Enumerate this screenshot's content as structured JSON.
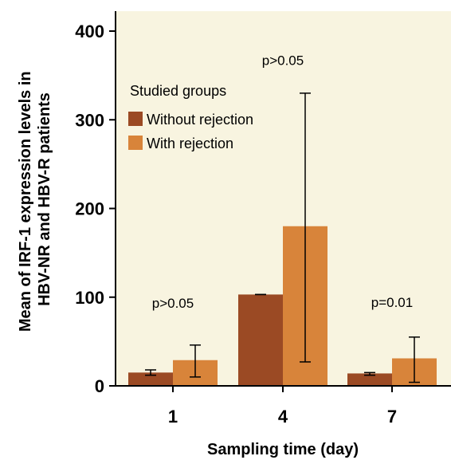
{
  "chart_data": {
    "type": "bar",
    "categories": [
      "1",
      "4",
      "7"
    ],
    "xlabel": "Sampling time (day)",
    "ylabel_lines": [
      "Mean of IRF-1 expression levels in",
      "HBV-NR and HBV-R patients"
    ],
    "ylim": [
      0,
      400
    ],
    "yticks": [
      "0",
      "100",
      "200",
      "300",
      "400"
    ],
    "grid": false,
    "legend": {
      "title": "Studied groups",
      "placement": "top-left"
    },
    "series": [
      {
        "name": "Without rejection",
        "color": "#9b4a24",
        "values": [
          15,
          103,
          14
        ],
        "error_low": [
          12,
          103,
          12
        ],
        "error_high": [
          18,
          103,
          15
        ]
      },
      {
        "name": "With rejection",
        "color": "#d8843a",
        "values": [
          29,
          180,
          31
        ],
        "error_low": [
          10,
          27,
          4
        ],
        "error_high": [
          46,
          330,
          55
        ]
      }
    ],
    "annotations": [
      {
        "category_index": 0,
        "text": "p>0.05",
        "y": 88
      },
      {
        "category_index": 1,
        "text": "p>0.05",
        "y": 362
      },
      {
        "category_index": 2,
        "text": "p=0.01",
        "y": 89
      }
    ],
    "plot_background": "#f8f4e0"
  }
}
